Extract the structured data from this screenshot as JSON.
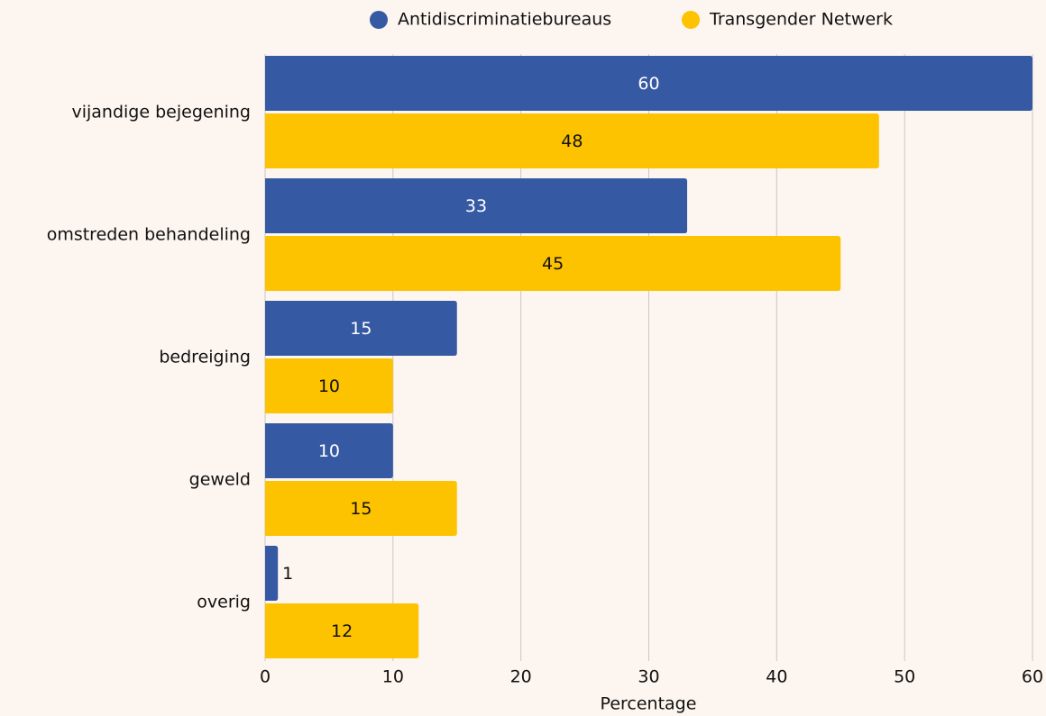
{
  "chart_data": {
    "type": "bar",
    "orientation": "horizontal",
    "x_label": "Percentage",
    "categories": [
      "vijandige bejegening",
      "omstreden behandeling",
      "bedreiging",
      "geweld",
      "overig"
    ],
    "series": [
      {
        "name": "Antidiscriminatiebureaus",
        "color": "#3559a3",
        "values": [
          60,
          33,
          15,
          10,
          1
        ]
      },
      {
        "name": "Transgender Netwerk",
        "color": "#fdc300",
        "values": [
          48,
          45,
          10,
          15,
          12
        ]
      }
    ],
    "xlim": [
      0,
      60
    ],
    "xticks": [
      0,
      10,
      20,
      30,
      40,
      50,
      60
    ],
    "grid": true,
    "legend": "top"
  }
}
